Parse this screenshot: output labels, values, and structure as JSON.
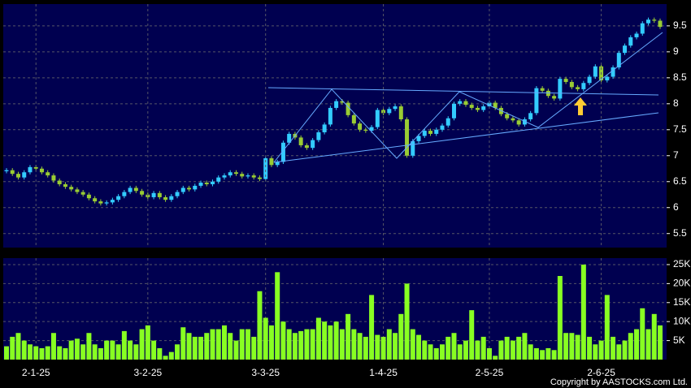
{
  "chart_data": [
    {
      "type": "candlestick",
      "up_color": "#33ccff",
      "down_color": "#99cc33",
      "ylim": [
        5.23,
        9.92
      ],
      "yticks": [
        5.5,
        6,
        6.5,
        7,
        7.5,
        8,
        8.5,
        9,
        9.5
      ],
      "grid": true,
      "open": [
        6.7,
        6.72,
        6.65,
        6.58,
        6.68,
        6.78,
        6.75,
        6.68,
        6.62,
        6.52,
        6.45,
        6.4,
        6.35,
        6.3,
        6.25,
        6.18,
        6.12,
        6.08,
        6.1,
        6.15,
        6.22,
        6.3,
        6.38,
        6.32,
        6.25,
        6.2,
        6.28,
        6.2,
        6.15,
        6.22,
        6.3,
        6.38,
        6.35,
        6.42,
        6.48,
        6.45,
        6.5,
        6.58,
        6.62,
        6.68,
        6.65,
        6.6,
        6.62,
        6.58,
        6.55,
        6.95,
        6.82,
        6.88,
        7.25,
        7.42,
        7.35,
        7.2,
        7.15,
        7.3,
        7.45,
        7.6,
        7.92,
        8.05,
        8.02,
        7.78,
        7.62,
        7.5,
        7.48,
        7.55,
        7.88,
        7.82,
        7.9,
        7.95,
        7.7,
        7.0,
        7.28,
        7.38,
        7.48,
        7.42,
        7.5,
        7.58,
        7.72,
        8.0,
        8.05,
        7.98,
        7.92,
        7.88,
        7.95,
        8.02,
        7.92,
        7.8,
        7.72,
        7.68,
        7.6,
        7.7,
        7.82,
        8.3,
        8.25,
        8.15,
        8.1,
        8.48,
        8.42,
        8.32,
        8.28,
        8.4,
        8.52,
        8.72,
        8.45,
        8.52,
        8.7,
        8.98,
        9.12,
        9.28,
        9.35,
        9.55,
        9.62,
        9.6
      ],
      "high": [
        6.76,
        6.76,
        6.69,
        6.72,
        6.82,
        6.82,
        6.79,
        6.72,
        6.66,
        6.56,
        6.49,
        6.44,
        6.39,
        6.34,
        6.29,
        6.22,
        6.16,
        6.14,
        6.19,
        6.26,
        6.34,
        6.42,
        6.42,
        6.36,
        6.29,
        6.32,
        6.32,
        6.24,
        6.26,
        6.34,
        6.42,
        6.42,
        6.46,
        6.52,
        6.52,
        6.54,
        6.62,
        6.66,
        6.72,
        6.72,
        6.69,
        6.66,
        6.66,
        6.62,
        6.99,
        6.99,
        6.92,
        7.29,
        7.46,
        7.46,
        7.39,
        7.24,
        7.34,
        7.49,
        7.64,
        7.96,
        8.09,
        8.09,
        8.06,
        7.82,
        7.66,
        7.54,
        7.59,
        7.92,
        7.92,
        7.94,
        7.99,
        7.99,
        7.74,
        7.32,
        7.42,
        7.52,
        7.52,
        7.54,
        7.62,
        7.76,
        8.04,
        8.09,
        8.09,
        8.02,
        7.96,
        7.99,
        8.06,
        8.06,
        7.96,
        7.84,
        7.76,
        7.72,
        7.74,
        7.86,
        8.34,
        8.34,
        8.29,
        8.19,
        8.52,
        8.52,
        8.46,
        8.36,
        8.44,
        8.56,
        8.76,
        8.76,
        8.56,
        8.74,
        9.02,
        9.16,
        9.32,
        9.39,
        9.59,
        9.66,
        9.66,
        9.64
      ],
      "low": [
        6.66,
        6.61,
        6.54,
        6.54,
        6.64,
        6.71,
        6.64,
        6.58,
        6.48,
        6.41,
        6.36,
        6.31,
        6.26,
        6.21,
        6.14,
        6.08,
        6.04,
        6.04,
        6.06,
        6.11,
        6.18,
        6.26,
        6.28,
        6.21,
        6.16,
        6.16,
        6.16,
        6.11,
        6.11,
        6.18,
        6.26,
        6.31,
        6.31,
        6.38,
        6.41,
        6.41,
        6.46,
        6.54,
        6.58,
        6.61,
        6.56,
        6.56,
        6.54,
        6.51,
        6.51,
        6.78,
        6.78,
        6.84,
        7.21,
        7.31,
        7.16,
        7.11,
        7.11,
        7.26,
        7.41,
        7.56,
        7.88,
        7.98,
        7.74,
        7.58,
        7.46,
        7.44,
        7.44,
        7.51,
        7.78,
        7.78,
        7.86,
        7.66,
        6.96,
        6.96,
        7.24,
        7.34,
        7.38,
        7.38,
        7.46,
        7.54,
        7.68,
        7.96,
        7.94,
        7.88,
        7.84,
        7.84,
        7.91,
        7.88,
        7.76,
        7.68,
        7.64,
        7.56,
        7.56,
        7.66,
        7.78,
        8.21,
        8.11,
        8.06,
        8.06,
        8.38,
        8.28,
        8.24,
        8.24,
        8.36,
        8.48,
        8.41,
        8.41,
        8.48,
        8.66,
        8.94,
        9.08,
        9.24,
        9.31,
        9.51,
        9.56,
        9.44
      ],
      "close": [
        6.72,
        6.65,
        6.58,
        6.68,
        6.78,
        6.75,
        6.68,
        6.62,
        6.52,
        6.45,
        6.4,
        6.35,
        6.3,
        6.25,
        6.18,
        6.12,
        6.08,
        6.1,
        6.15,
        6.22,
        6.3,
        6.38,
        6.32,
        6.25,
        6.2,
        6.28,
        6.2,
        6.15,
        6.22,
        6.3,
        6.38,
        6.35,
        6.42,
        6.48,
        6.45,
        6.5,
        6.58,
        6.62,
        6.68,
        6.65,
        6.6,
        6.62,
        6.58,
        6.55,
        6.95,
        6.82,
        6.88,
        7.25,
        7.42,
        7.35,
        7.2,
        7.15,
        7.3,
        7.45,
        7.6,
        7.92,
        8.05,
        8.02,
        7.78,
        7.62,
        7.5,
        7.48,
        7.55,
        7.88,
        7.82,
        7.9,
        7.95,
        7.7,
        7.0,
        7.28,
        7.38,
        7.48,
        7.42,
        7.5,
        7.58,
        7.72,
        8.0,
        8.05,
        7.98,
        7.92,
        7.88,
        7.95,
        8.02,
        7.92,
        7.8,
        7.72,
        7.68,
        7.6,
        7.7,
        7.82,
        8.3,
        8.25,
        8.15,
        8.1,
        8.48,
        8.42,
        8.32,
        8.28,
        8.4,
        8.52,
        8.72,
        8.45,
        8.52,
        8.7,
        8.98,
        9.12,
        9.28,
        9.35,
        9.55,
        9.62,
        9.6,
        9.48
      ]
    },
    {
      "type": "bar",
      "color": "#88ff22",
      "ylim": [
        0,
        26700
      ],
      "yticks": [
        {
          "value": 5000,
          "label": "5K"
        },
        {
          "value": 10000,
          "label": "10K"
        },
        {
          "value": 15000,
          "label": "15K"
        },
        {
          "value": 20000,
          "label": "20K"
        },
        {
          "value": 25000,
          "label": "25K"
        }
      ],
      "grid": true,
      "categories": [
        null,
        null,
        null,
        null,
        null,
        "2-1-25",
        null,
        null,
        null,
        null,
        null,
        null,
        null,
        null,
        null,
        null,
        null,
        null,
        null,
        null,
        null,
        null,
        null,
        null,
        "3-2-25",
        null,
        null,
        null,
        null,
        null,
        null,
        null,
        null,
        null,
        null,
        null,
        null,
        null,
        null,
        null,
        null,
        null,
        null,
        null,
        "3-3-25",
        null,
        null,
        null,
        null,
        null,
        null,
        null,
        null,
        null,
        null,
        null,
        null,
        null,
        null,
        null,
        null,
        null,
        null,
        null,
        "1-4-25",
        null,
        null,
        null,
        null,
        null,
        null,
        null,
        null,
        null,
        null,
        null,
        null,
        null,
        null,
        null,
        null,
        null,
        "2-5-25",
        null,
        null,
        null,
        null,
        null,
        null,
        null,
        null,
        null,
        null,
        null,
        null,
        null,
        null,
        null,
        null,
        null,
        null,
        "2-6-25",
        null,
        null,
        null,
        null,
        null,
        null,
        null,
        null,
        null,
        null
      ],
      "values": [
        3500,
        6000,
        7000,
        5000,
        4000,
        3500,
        3000,
        3500,
        7000,
        3500,
        3000,
        5000,
        5500,
        4000,
        7000,
        4000,
        3000,
        5000,
        5000,
        4000,
        7500,
        5000,
        4000,
        8000,
        9000,
        5000,
        3000,
        1000,
        2000,
        4000,
        8500,
        7000,
        6000,
        6000,
        7000,
        8000,
        8000,
        9000,
        7000,
        5000,
        8000,
        8000,
        6000,
        18000,
        11000,
        9000,
        23000,
        10000,
        8000,
        7000,
        7500,
        8000,
        8000,
        11000,
        10000,
        9000,
        10000,
        8000,
        12000,
        8000,
        7000,
        6000,
        17000,
        6500,
        6000,
        8000,
        7000,
        12000,
        20000,
        8000,
        6500,
        5000,
        4000,
        3000,
        4000,
        6000,
        7000,
        4000,
        5000,
        13000,
        5000,
        6000,
        3000,
        1000,
        5000,
        6000,
        5000,
        6000,
        7000,
        4000,
        3000,
        2500,
        3000,
        2500,
        22000,
        7000,
        7000,
        6500,
        25000,
        6000,
        4000,
        5000,
        17000,
        6000,
        4000,
        5000,
        7000,
        8000,
        13500,
        8000,
        12000,
        9000
      ]
    }
  ],
  "copyright": "Copyright by AASTOCKS.com Ltd."
}
